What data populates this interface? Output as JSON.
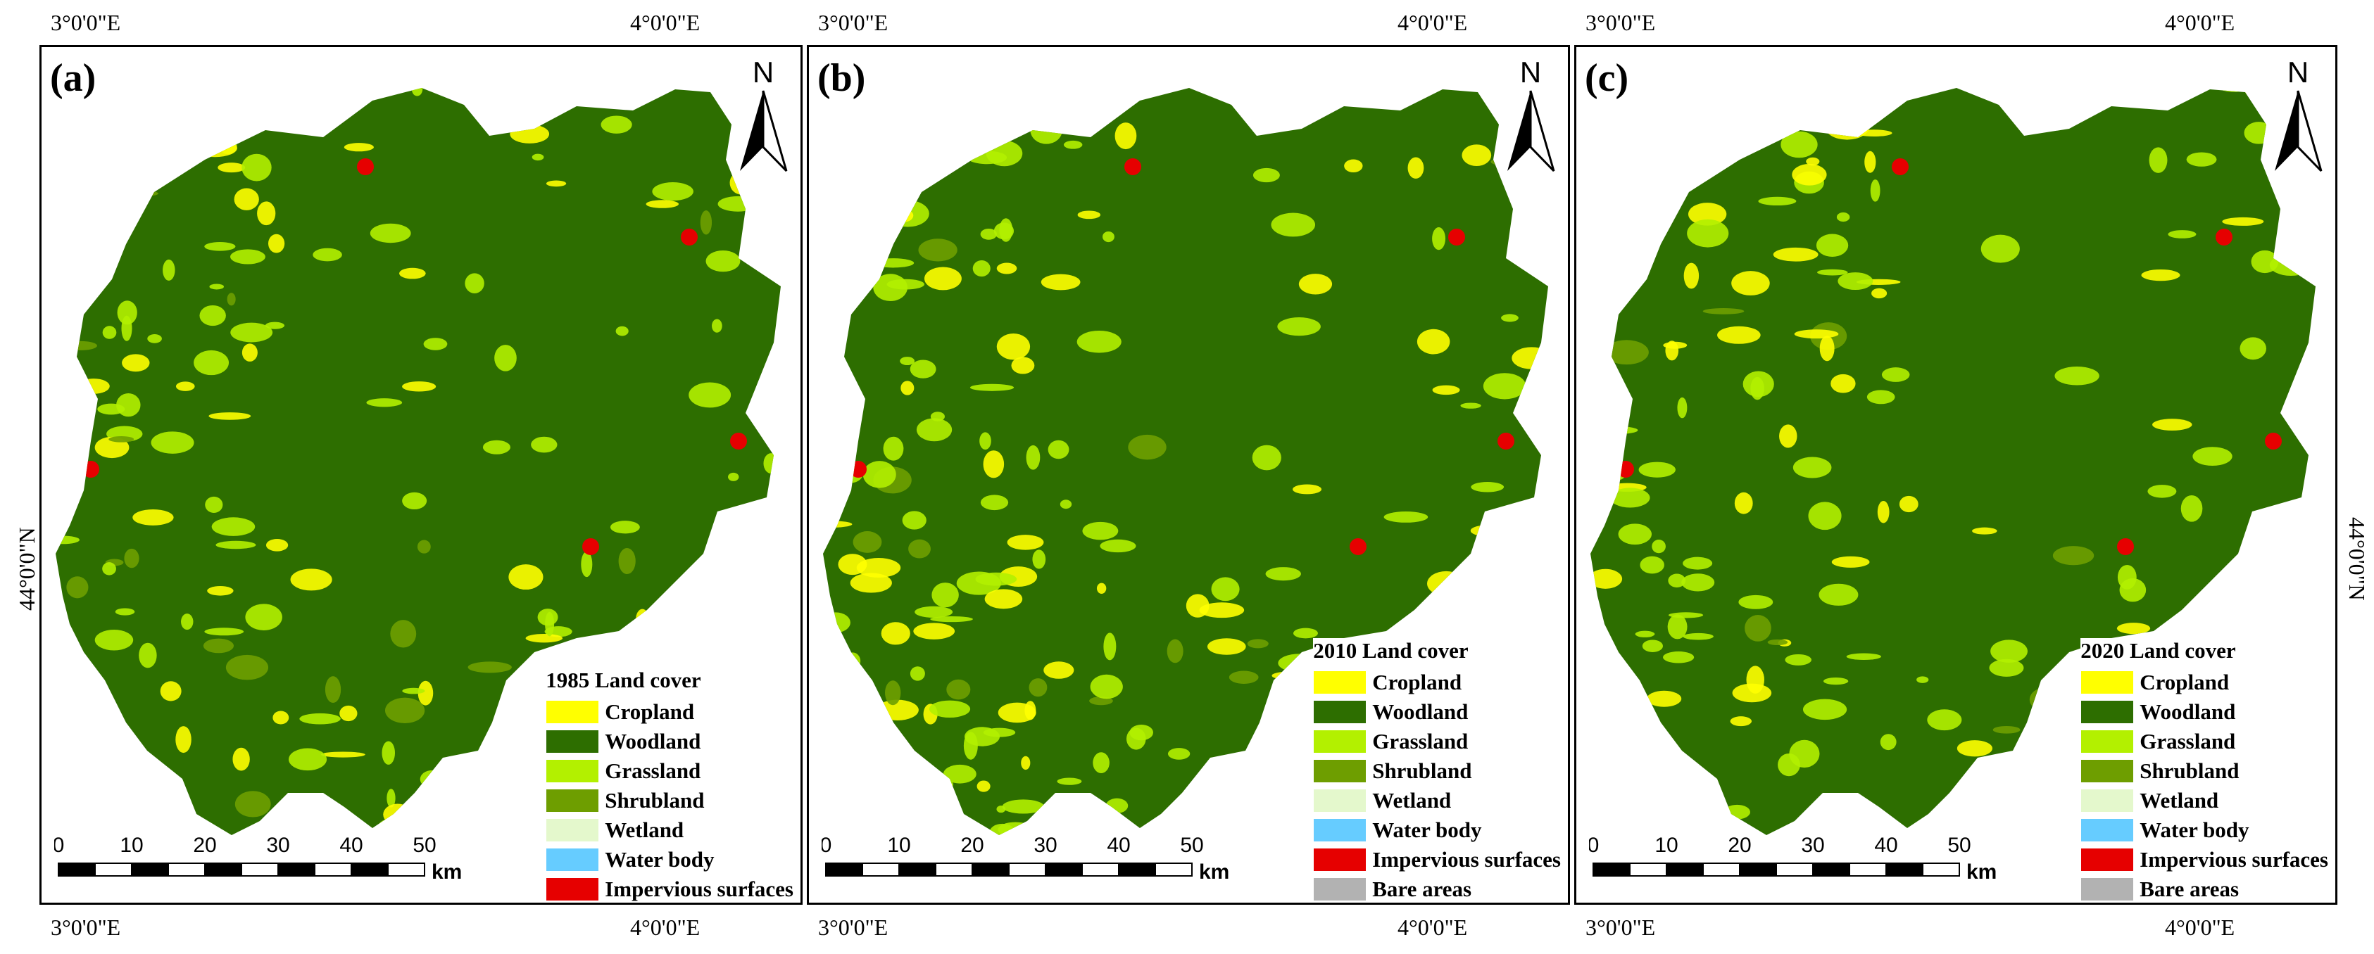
{
  "coordinates": {
    "lon_left": "3°0'0\"E",
    "lon_right": "4°0'0\"E",
    "lat": "44°0'0\"N"
  },
  "north_label": "N",
  "scalebar": {
    "ticks": [
      "0",
      "10",
      "20",
      "30",
      "40",
      "50"
    ],
    "unit": "km"
  },
  "colors": {
    "Cropland": "#ffff00",
    "Woodland": "#2d6e00",
    "Grassland": "#b3f000",
    "Shrubland": "#6e9e00",
    "Wetland": "#e4f8cc",
    "Water body": "#66ccff",
    "Impervious surfaces": "#e60000",
    "Bare areas": "#b2b2b2"
  },
  "panels": [
    {
      "label": "(a)",
      "legend_title": "1985 Land cover",
      "legend_items": [
        "Cropland",
        "Woodland",
        "Grassland",
        "Shrubland",
        "Wetland",
        "Water body",
        "Impervious surfaces"
      ]
    },
    {
      "label": "(b)",
      "legend_title": "2010 Land cover",
      "legend_items": [
        "Cropland",
        "Woodland",
        "Grassland",
        "Shrubland",
        "Wetland",
        "Water body",
        "Impervious surfaces",
        "Bare areas"
      ]
    },
    {
      "label": "(c)",
      "legend_title": "2020 Land cover",
      "legend_items": [
        "Cropland",
        "Woodland",
        "Grassland",
        "Shrubland",
        "Wetland",
        "Water body",
        "Impervious surfaces",
        "Bare areas"
      ]
    }
  ]
}
